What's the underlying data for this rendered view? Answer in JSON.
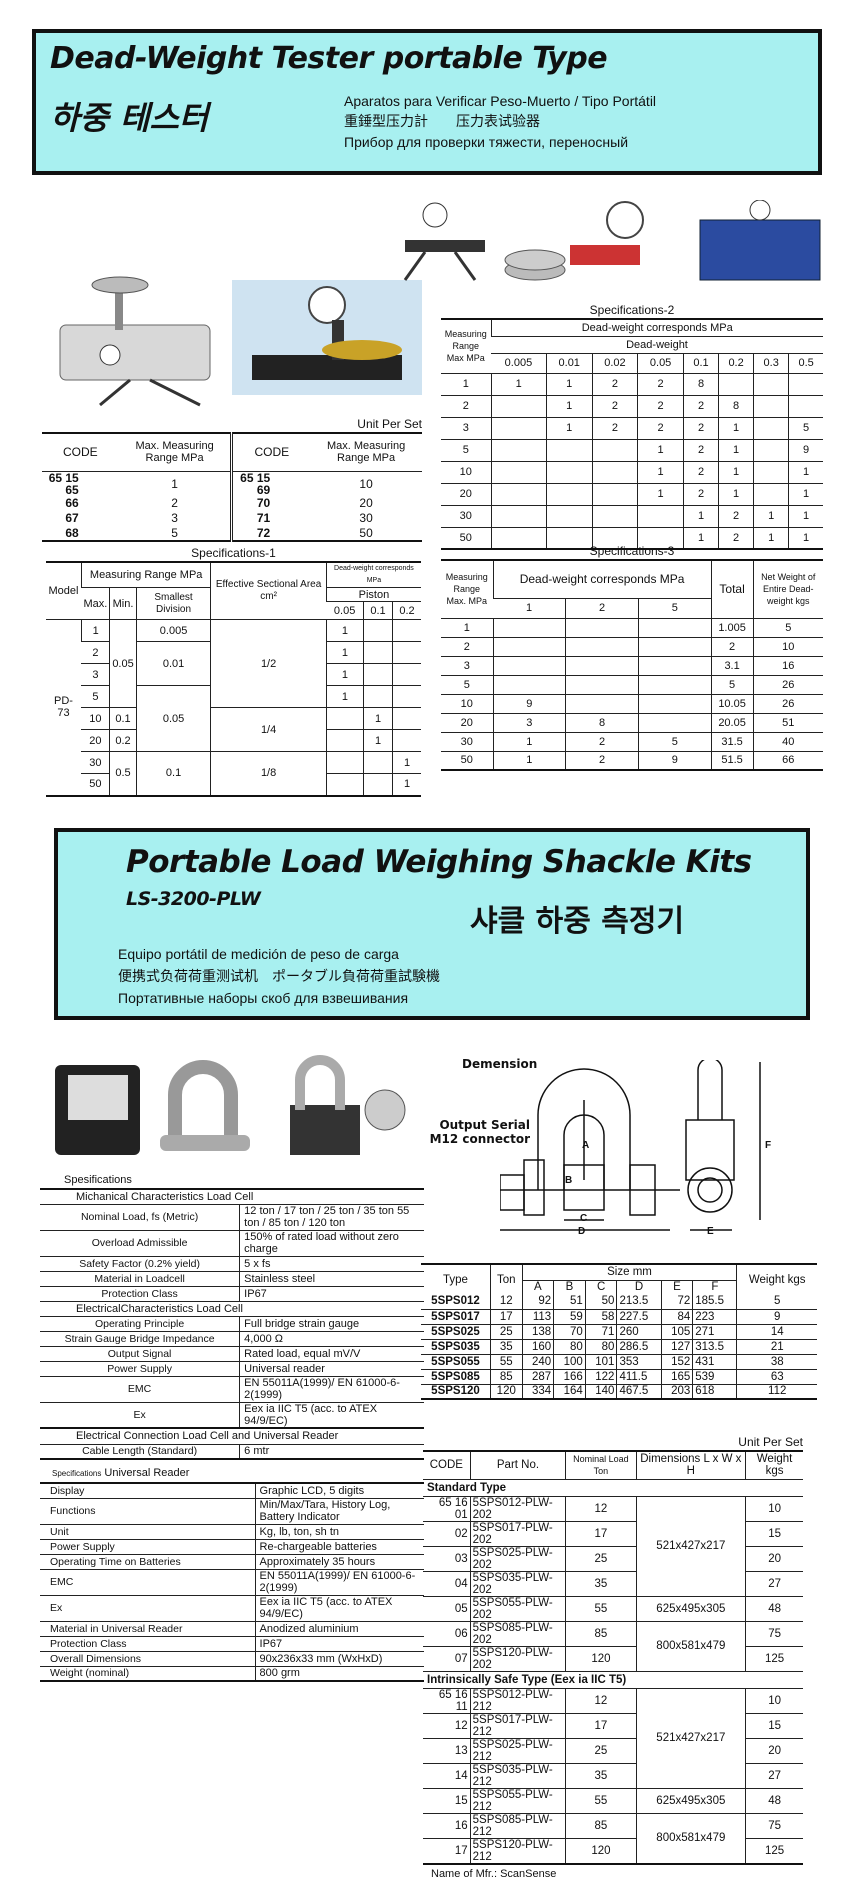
{
  "dwt": {
    "title": "Dead-Weight Tester portable Type",
    "title_ko": "하중 테스터",
    "sub_es": "Aparatos para Verificar Peso-Muerto / Tipo Portátil",
    "sub_zh": "重錘型压力計　　压力表试验器",
    "sub_ru": "Прибор для проверки тяжести, переносный",
    "unit_per_set": "Unit Per Set",
    "codes": {
      "headers": [
        "CODE",
        "Max. Measuring Range MPa",
        "CODE",
        "Max. Measuring Range MPa"
      ],
      "rows": [
        [
          "65 15 65",
          "1",
          "65 15 69",
          "10"
        ],
        [
          "66",
          "2",
          "70",
          "20"
        ],
        [
          "67",
          "3",
          "71",
          "30"
        ],
        [
          "68",
          "5",
          "72",
          "50"
        ]
      ]
    },
    "spec1": {
      "caption": "Specifications-1",
      "h_model": "Model",
      "h_range": "Measuring Range MPa",
      "h_max": "Max.",
      "h_min": "Min.",
      "h_div": "Smallest Division",
      "h_area": "Effective Sectional Area cm²",
      "h_corr": "Dead-weight corresponds MPa",
      "h_piston": "Piston",
      "pistons": [
        "0.05",
        "0.1",
        "0.2"
      ],
      "model": "PD-73",
      "max": [
        "1",
        "2",
        "3",
        "5",
        "10",
        "20",
        "30",
        "50"
      ],
      "min": [
        "0.05",
        "0.1",
        "0.2",
        "0.5"
      ],
      "div": [
        "0.005",
        "0.01",
        "0.05",
        "0.1"
      ],
      "area": [
        "1/2",
        "1/4",
        "1/8"
      ],
      "piston_rows": [
        [
          "1",
          "",
          ""
        ],
        [
          "1",
          "",
          ""
        ],
        [
          "1",
          "",
          ""
        ],
        [
          "1",
          "",
          ""
        ],
        [
          "",
          "1",
          ""
        ],
        [
          "",
          "1",
          ""
        ],
        [
          "",
          "",
          "1"
        ],
        [
          "",
          "",
          "1"
        ]
      ]
    },
    "spec2": {
      "caption": "Specifications-2",
      "h_range": "Measuring Range Max MPa",
      "h_corr": "Dead-weight corresponds MPa",
      "h_dw": "Dead-weight",
      "cols": [
        "0.005",
        "0.01",
        "0.02",
        "0.05",
        "0.1",
        "0.2",
        "0.3",
        "0.5"
      ],
      "rows": [
        [
          "1",
          "1",
          "1",
          "2",
          "2",
          "8",
          "",
          "",
          ""
        ],
        [
          "2",
          "",
          "1",
          "2",
          "2",
          "2",
          "8",
          "",
          ""
        ],
        [
          "3",
          "",
          "1",
          "2",
          "2",
          "2",
          "1",
          "",
          "5"
        ],
        [
          "5",
          "",
          "",
          "",
          "1",
          "2",
          "1",
          "",
          "9"
        ],
        [
          "10",
          "",
          "",
          "",
          "1",
          "2",
          "1",
          "",
          "1"
        ],
        [
          "20",
          "",
          "",
          "",
          "1",
          "2",
          "1",
          "",
          "1"
        ],
        [
          "30",
          "",
          "",
          "",
          "",
          "1",
          "2",
          "1",
          "1"
        ],
        [
          "50",
          "",
          "",
          "",
          "",
          "1",
          "2",
          "1",
          "1"
        ]
      ]
    },
    "spec3": {
      "caption": "Specifications-3",
      "h_range": "Measuring Range Max. MPa",
      "h_corr": "Dead-weight corresponds MPa",
      "cols": [
        "1",
        "2",
        "5"
      ],
      "h_total": "Total",
      "h_net": "Net Weight of Entire Dead-weight kgs",
      "rows": [
        [
          "1",
          "",
          "",
          "",
          "1.005",
          "5"
        ],
        [
          "2",
          "",
          "",
          "",
          "2",
          "10"
        ],
        [
          "3",
          "",
          "",
          "",
          "3.1",
          "16"
        ],
        [
          "5",
          "",
          "",
          "",
          "5",
          "26"
        ],
        [
          "10",
          "9",
          "",
          "",
          "10.05",
          "26"
        ],
        [
          "20",
          "3",
          "8",
          "",
          "20.05",
          "51"
        ],
        [
          "30",
          "1",
          "2",
          "5",
          "31.5",
          "40"
        ],
        [
          "50",
          "1",
          "2",
          "9",
          "51.5",
          "66"
        ]
      ]
    }
  },
  "plw": {
    "title": "Portable Load Weighing Shackle Kits",
    "model": "LS-3200-PLW",
    "title_ko": "샤클 하중 측정기",
    "sub_es": "Equipo portátil de medición de peso de carga",
    "sub_zh": "便携式负荷荷重测试机　ポータブル負荷荷重試験機",
    "sub_ru": "Портативные наборы скоб для взвешивания",
    "dimension_label": "Demension",
    "connector_label": "Output Serial M12 connector",
    "dim_letters": [
      "A",
      "B",
      "C",
      "D",
      "E",
      "F"
    ],
    "spec_label": "Spesifications",
    "mech_header": "Michanical Characteristics Load Cell",
    "mech_rows": [
      [
        "Nominal Load, fs (Metric)",
        "12 ton / 17 ton / 25 ton / 35 ton 55 ton / 85 ton / 120 ton"
      ],
      [
        "Overload Admissible",
        "150% of rated load without zero charge"
      ],
      [
        "Safety Factor (0.2% yield)",
        "5 x fs"
      ],
      [
        "Material in Loadcell",
        "Stainless steel"
      ],
      [
        "Protection Class",
        "IP67"
      ]
    ],
    "elec_header": "ElectricalCharacteristics Load Cell",
    "elec_rows": [
      [
        "Operating Principle",
        "Full bridge strain gauge"
      ],
      [
        "Strain Gauge Bridge Impedance",
        "4,000 Ω"
      ],
      [
        "Output Signal",
        "Rated load, equal mV/V"
      ],
      [
        "Power Supply",
        "Universal reader"
      ],
      [
        "EMC",
        "EN 55011A(1999)/ EN 61000-6-2(1999)"
      ],
      [
        "Ex",
        "Eex ia IIC T5 (acc. to ATEX 94/9/EC)"
      ]
    ],
    "conn_header": "Electrical Connection Load Cell and Universal Reader",
    "conn_rows": [
      [
        "Cable Length (Standard)",
        "6 mtr"
      ]
    ],
    "reader_label_small": "Specifications",
    "reader_label": "Universal Reader",
    "reader_rows": [
      [
        "Display",
        "Graphic LCD, 5 digits"
      ],
      [
        "Functions",
        "Min/Max/Tara, History Log, Battery Indicator"
      ],
      [
        "Unit",
        "Kg, lb, ton, sh tn"
      ],
      [
        "Power Supply",
        "Re-chargeable batteries"
      ],
      [
        "Operating Time on Batteries",
        "Approximately 35 hours"
      ],
      [
        "EMC",
        "EN 55011A(1999)/ EN 61000-6-2(1999)"
      ],
      [
        "Ex",
        "Eex ia IIC T5 (acc. to ATEX 94/9/EC)"
      ],
      [
        "Material in Universal Reader",
        "Anodized aluminium"
      ],
      [
        "Protection Class",
        "IP67"
      ],
      [
        "Overall Dimensions",
        "90x236x33 mm (WxHxD)"
      ],
      [
        "Weight (nominal)",
        "800 grm"
      ]
    ],
    "size": {
      "h_type": "Type",
      "h_ton": "Ton",
      "h_size": "Size mm",
      "cols": [
        "A",
        "B",
        "C",
        "D",
        "E",
        "F"
      ],
      "h_weight": "Weight kgs",
      "rows": [
        [
          "5SPS012",
          "12",
          "92",
          "51",
          "50",
          "213.5",
          "72",
          "185.5",
          "5"
        ],
        [
          "5SPS017",
          "17",
          "113",
          "59",
          "58",
          "227.5",
          "84",
          "223",
          "9"
        ],
        [
          "5SPS025",
          "25",
          "138",
          "70",
          "71",
          "260",
          "105",
          "271",
          "14"
        ],
        [
          "5SPS035",
          "35",
          "160",
          "80",
          "80",
          "286.5",
          "127",
          "313.5",
          "21"
        ],
        [
          "5SPS055",
          "55",
          "240",
          "100",
          "101",
          "353",
          "152",
          "431",
          "38"
        ],
        [
          "5SPS085",
          "85",
          "287",
          "166",
          "122",
          "411.5",
          "165",
          "539",
          "63"
        ],
        [
          "5SPS120",
          "120",
          "334",
          "164",
          "140",
          "467.5",
          "203",
          "618",
          "112"
        ]
      ]
    },
    "parts": {
      "unit_per_set": "Unit Per Set",
      "headers": [
        "CODE",
        "Part No.",
        "Nominal Load Ton",
        "Dimensions L x W x H",
        "Weight kgs"
      ],
      "groups": [
        {
          "label": "Standard Type",
          "dims": [
            "521x427x217",
            "625x495x305",
            "800x581x479"
          ],
          "rows": [
            [
              "65 16 01",
              "5SPS012-PLW-202",
              "12",
              "10"
            ],
            [
              "02",
              "5SPS017-PLW-202",
              "17",
              "15"
            ],
            [
              "03",
              "5SPS025-PLW-202",
              "25",
              "20"
            ],
            [
              "04",
              "5SPS035-PLW-202",
              "35",
              "27"
            ],
            [
              "05",
              "5SPS055-PLW-202",
              "55",
              "48"
            ],
            [
              "06",
              "5SPS085-PLW-202",
              "85",
              "75"
            ],
            [
              "07",
              "5SPS120-PLW-202",
              "120",
              "125"
            ]
          ]
        },
        {
          "label": "Intrinsically Safe Type (Eex ia IIC T5)",
          "dims": [
            "521x427x217",
            "625x495x305",
            "800x581x479"
          ],
          "rows": [
            [
              "65 16 11",
              "5SPS012-PLW-212",
              "12",
              "10"
            ],
            [
              "12",
              "5SPS017-PLW-212",
              "17",
              "15"
            ],
            [
              "13",
              "5SPS025-PLW-212",
              "25",
              "20"
            ],
            [
              "14",
              "5SPS035-PLW-212",
              "35",
              "27"
            ],
            [
              "15",
              "5SPS055-PLW-212",
              "55",
              "48"
            ],
            [
              "16",
              "5SPS085-PLW-212",
              "85",
              "75"
            ],
            [
              "17",
              "5SPS120-PLW-212",
              "120",
              "125"
            ]
          ]
        }
      ],
      "mfr": "Name of Mfr.:  ScanSense"
    }
  },
  "colors": {
    "banner": "#a8f0f0",
    "border": "#111111"
  }
}
